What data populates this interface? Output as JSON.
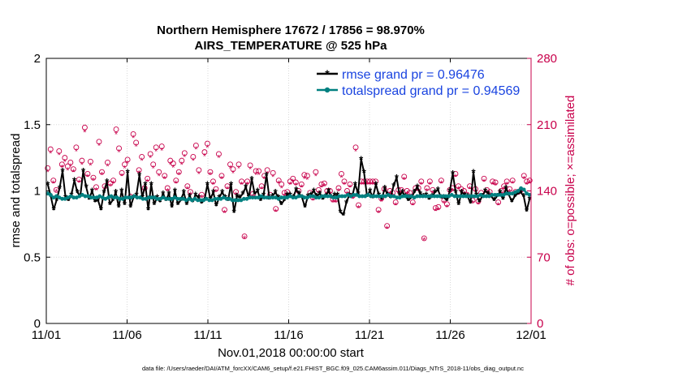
{
  "chart_data": {
    "type": "line",
    "title_line1": "Northern Hemisphere 17672 / 17856 = 98.970%",
    "title_line2": "AIRS_TEMPERATURE @ 525 hPa",
    "xlabel": "Nov.01,2018 00:00:00 start",
    "ylabel": "rmse and totalspread",
    "y2label": "# of obs: o=possible; ×=assimilated",
    "x_tick_labels": [
      "11/01",
      "11/06",
      "11/11",
      "11/16",
      "11/21",
      "11/26",
      "12/01"
    ],
    "x_tick_days": [
      0,
      5,
      10,
      15,
      20,
      25,
      30
    ],
    "xlim": [
      0,
      30
    ],
    "ylim": [
      0,
      2
    ],
    "y_tick_labels": [
      "0",
      "0.5",
      "1",
      "1.5",
      "2"
    ],
    "y_ticks": [
      0,
      0.5,
      1,
      1.5,
      2
    ],
    "y2lim": [
      0,
      280
    ],
    "y2_tick_labels": [
      "0",
      "70",
      "140",
      "210",
      "280"
    ],
    "y2_ticks": [
      0,
      70,
      140,
      210,
      280
    ],
    "grid": true,
    "legend_position": "top-right",
    "series": [
      {
        "name": "rmse grand pr = 0.96476",
        "color": "#000000",
        "marker": "star",
        "values": [
          1.05,
          0.96,
          0.86,
          0.93,
          1.02,
          1.15,
          0.95,
          0.93,
          0.97,
          1.08,
          0.99,
          0.96,
          1.15,
          1.03,
          0.94,
          1.0,
          0.92,
          0.93,
          0.86,
          0.99,
          1.07,
          0.9,
          0.93,
          0.99,
          0.88,
          1.0,
          0.9,
          1.14,
          0.88,
          0.95,
          0.97,
          1.12,
          0.95,
          1.05,
          0.86,
          1.05,
          0.9,
          0.95,
          0.92,
          0.98,
          0.93,
          0.98,
          0.88,
          1.0,
          0.9,
          0.93,
          0.99,
          0.9,
          0.96,
          0.92,
          0.97,
          0.95,
          0.91,
          0.93,
          1.05,
          0.94,
          0.99,
          0.89,
          0.95,
          0.99,
          0.95,
          0.93,
          1.05,
          0.84,
          0.96,
          0.95,
          0.98,
          1.03,
          0.95,
          1.09,
          0.98,
          1.0,
          0.93,
          0.97,
          1.12,
          0.94,
          0.96,
          0.99,
          0.95,
          0.9,
          0.93,
          0.97,
          0.97,
          0.95,
          1.01,
          0.98,
          0.95,
          0.88,
          0.96,
          0.97,
          1.0,
          0.96,
          0.98,
          0.94,
          0.96,
          1.0,
          0.95,
          0.97,
          0.97,
          0.84,
          0.82,
          0.91,
          0.97,
          0.96,
          1.05,
          0.98,
          1.24,
          1.14,
          0.96,
          1.0,
          0.95,
          1.05,
          0.97,
          0.94,
          1.02,
          0.97,
          0.95,
          1.04,
          1.1,
          0.97,
          0.99,
          0.96,
          0.93,
          0.95,
          0.99,
          1.03,
          0.98,
          0.96,
          0.97,
          0.94,
          0.96,
          0.99,
          1.01,
          0.95,
          0.95,
          0.93,
          1.0,
          1.13,
          0.99,
          0.9,
          0.99,
          0.97,
          0.96,
          0.91,
          1.14,
          0.97,
          0.92,
          0.96,
          1.0,
          0.98,
          0.96,
          0.93,
          0.96,
          0.99,
          0.94,
          1.02,
          0.97,
          0.92,
          0.96,
          0.98,
          0.99,
          0.96,
          0.85,
          0.94
        ]
      },
      {
        "name": "totalspread grand pr = 0.94569",
        "color": "#008080",
        "marker": "dot",
        "values": [
          0.98,
          0.97,
          0.95,
          0.96,
          0.95,
          0.94,
          0.94,
          0.95,
          0.96,
          0.95,
          0.95,
          0.96,
          0.97,
          0.96,
          0.96,
          0.95,
          0.95,
          0.95,
          0.96,
          0.95,
          0.94,
          0.95,
          0.96,
          0.95,
          0.95,
          0.94,
          0.94,
          0.95,
          0.95,
          0.95,
          0.96,
          0.95,
          0.95,
          0.94,
          0.94,
          0.95,
          0.95,
          0.95,
          0.94,
          0.94,
          0.95,
          0.94,
          0.94,
          0.94,
          0.95,
          0.94,
          0.94,
          0.94,
          0.93,
          0.94,
          0.93,
          0.94,
          0.93,
          0.93,
          0.93,
          0.94,
          0.93,
          0.93,
          0.94,
          0.94,
          0.94,
          0.95,
          0.94,
          0.94,
          0.93,
          0.93,
          0.93,
          0.93,
          0.94,
          0.94,
          0.95,
          0.95,
          0.95,
          0.95,
          0.96,
          0.95,
          0.95,
          0.95,
          0.95,
          0.95,
          0.94,
          0.95,
          0.95,
          0.95,
          0.96,
          0.95,
          0.95,
          0.96,
          0.96,
          0.95,
          0.95,
          0.96,
          0.96,
          0.95,
          0.95,
          0.96,
          0.96,
          0.96,
          0.96,
          0.95,
          0.95,
          0.96,
          0.96,
          0.96,
          0.97,
          0.96,
          0.97,
          0.97,
          0.96,
          0.96,
          0.96,
          0.97,
          0.96,
          0.96,
          0.96,
          0.96,
          0.96,
          0.96,
          0.97,
          0.96,
          0.96,
          0.95,
          0.95,
          0.96,
          0.96,
          0.96,
          0.96,
          0.95,
          0.96,
          0.96,
          0.96,
          0.96,
          0.96,
          0.96,
          0.96,
          0.96,
          0.96,
          0.96,
          0.96,
          0.96,
          0.97,
          0.96,
          0.96,
          0.96,
          0.96,
          0.96,
          0.96,
          0.96,
          0.96,
          0.96,
          0.97,
          0.96,
          0.96,
          0.96,
          0.97,
          0.97,
          0.97,
          0.97,
          0.97,
          0.98,
          0.98,
          0.98,
          0.99,
          1.0,
          1.02,
          1.01,
          0.98,
          0.97
        ]
      }
    ],
    "obs_counts_possible": [
      164,
      184,
      151,
      141,
      182,
      168,
      175,
      166,
      170,
      163,
      186,
      152,
      172,
      207,
      158,
      171,
      154,
      144,
      192,
      160,
      145,
      170,
      148,
      151,
      205,
      185,
      159,
      168,
      173,
      134,
      200,
      191,
      162,
      176,
      143,
      153,
      179,
      168,
      186,
      160,
      187,
      156,
      143,
      172,
      169,
      151,
      160,
      172,
      180,
      145,
      139,
      176,
      188,
      162,
      136,
      181,
      190,
      160,
      150,
      142,
      179,
      156,
      120,
      145,
      168,
      163,
      139,
      168,
      150,
      92,
      150,
      167,
      137,
      161,
      161,
      145,
      156,
      162,
      136,
      159,
      121,
      151,
      147,
      138,
      139,
      150,
      153,
      149,
      140,
      147,
      157,
      156,
      138,
      133,
      160,
      141,
      147,
      148,
      140,
      140,
      131,
      131,
      143,
      158,
      150,
      140,
      147,
      135,
      186,
      125,
      150,
      150,
      150,
      150,
      150,
      150,
      120,
      132,
      142,
      103,
      140,
      138,
      128,
      141,
      141,
      155,
      140,
      138,
      128,
      143,
      143,
      150,
      90,
      143,
      150,
      141,
      122,
      123,
      151,
      130,
      126,
      141,
      143,
      158,
      145,
      142,
      140,
      136,
      145,
      130,
      142,
      129,
      138,
      153,
      141,
      139,
      150,
      149,
      128,
      140,
      145,
      150,
      142,
      151,
      139,
      139,
      141,
      156,
      150,
      151
    ],
    "obs_counts_assimilated": [
      160,
      180,
      148,
      139,
      178,
      165,
      171,
      162,
      166,
      160,
      182,
      149,
      168,
      202,
      155,
      167,
      151,
      141,
      188,
      157,
      142,
      166,
      145,
      148,
      200,
      181,
      156,
      164,
      169,
      131,
      196,
      187,
      159,
      172,
      140,
      150,
      175,
      164,
      182,
      156,
      183,
      153,
      140,
      168,
      165,
      148,
      157,
      168,
      176,
      142,
      136,
      172,
      184,
      158,
      133,
      177,
      186,
      157,
      147,
      139,
      175,
      153,
      117,
      142,
      164,
      159,
      136,
      164,
      147,
      90,
      147,
      163,
      134,
      157,
      157,
      142,
      153,
      158,
      133,
      155,
      118,
      148,
      143,
      135,
      136,
      147,
      150,
      146,
      137,
      144,
      153,
      152,
      135,
      130,
      156,
      138,
      144,
      145,
      137,
      137,
      128,
      128,
      140,
      154,
      147,
      137,
      144,
      132,
      182,
      122,
      147,
      147,
      147,
      147,
      147,
      147,
      117,
      129,
      139,
      100,
      137,
      135,
      125,
      138,
      138,
      152,
      137,
      135,
      125,
      140,
      140,
      147,
      88,
      140,
      147,
      138,
      119,
      120,
      148,
      127,
      123,
      138,
      140,
      155,
      142,
      139,
      137,
      133,
      142,
      127,
      139,
      126,
      135,
      150,
      138,
      136,
      147,
      146,
      125,
      137,
      142,
      147,
      139,
      148,
      136,
      136,
      138,
      153,
      147,
      148
    ],
    "footnote": "data file: /Users/raeder/DAI/ATM_forcXX/CAM6_setup/f.e21.FHIST_BGC.f09_025.CAM6assim.011/Diags_NTrS_2018-11/obs_diag_output.nc"
  }
}
